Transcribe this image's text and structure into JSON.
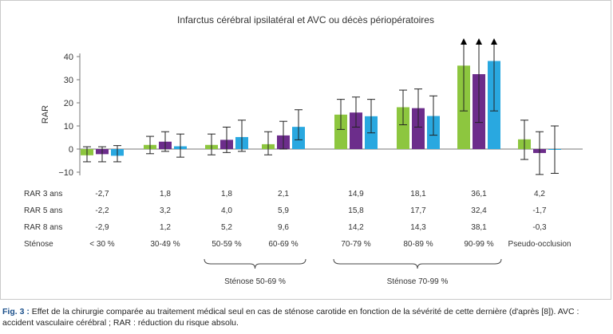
{
  "chart_data": {
    "type": "bar",
    "title": "Infarctus cérébral ipsilatéral et AVC ou décès périopératoires",
    "ylabel": "RAR",
    "ylim": [
      -10,
      40
    ],
    "yticks": [
      -10,
      0,
      10,
      20,
      30,
      40
    ],
    "grid": false,
    "categories": [
      "< 30 %",
      "30-49 %",
      "50-59 %",
      "60-69 %",
      "70-79 %",
      "80-89 %",
      "90-99 %",
      "Pseudo-occlusion"
    ],
    "category_row_label": "Sténose",
    "series": [
      {
        "name": "RAR 3 ans",
        "color": "#8dc63f",
        "values": [
          -2.7,
          1.8,
          1.8,
          2.1,
          14.9,
          18.1,
          36.1,
          4.2
        ],
        "display": [
          "-2,7",
          "1,8",
          "1,8",
          "2,1",
          "14,9",
          "18,1",
          "36,1",
          "4,2"
        ],
        "err_low": [
          -5.5,
          -2.0,
          -2.5,
          -2.5,
          8.5,
          10.5,
          16.5,
          -4.5
        ],
        "err_high": [
          1.0,
          5.5,
          6.5,
          7.5,
          21.5,
          25.5,
          null,
          12.5
        ]
      },
      {
        "name": "RAR 5 ans",
        "color": "#6c2d8b",
        "values": [
          -2.2,
          3.2,
          4.0,
          5.9,
          15.8,
          17.7,
          32.4,
          -1.7
        ],
        "display": [
          "-2,2",
          "3,2",
          "4,0",
          "5,9",
          "15,8",
          "17,7",
          "32,4",
          "-1,7"
        ],
        "err_low": [
          -5.5,
          -1.0,
          -1.5,
          0.0,
          9.5,
          9.5,
          11.5,
          -11.0
        ],
        "err_high": [
          1.0,
          7.5,
          9.5,
          12.0,
          22.5,
          26.0,
          null,
          7.5
        ]
      },
      {
        "name": "RAR 8 ans",
        "color": "#29a8e0",
        "values": [
          -2.9,
          1.2,
          5.2,
          9.6,
          14.2,
          14.3,
          38.1,
          -0.3
        ],
        "display": [
          "-2,9",
          "1,2",
          "5,2",
          "9,6",
          "14,2",
          "14,3",
          "38,1",
          "-0,3"
        ],
        "err_low": [
          -5.5,
          -3.5,
          -1.0,
          4.0,
          7.0,
          6.0,
          16.5,
          -10.5
        ],
        "err_high": [
          1.5,
          6.5,
          12.5,
          17.0,
          21.5,
          23.0,
          null,
          10.0
        ]
      }
    ],
    "arrows_above": [
      6
    ],
    "groups": [
      {
        "label": "Sténose 50-69 %",
        "from": 2,
        "to": 3
      },
      {
        "label": "Sténose 70-99 %",
        "from": 4,
        "to": 6
      }
    ]
  },
  "caption": {
    "label": "Fig. 3 :",
    "text": " Effet de la chirurgie comparée au traitement médical seul en cas de sténose carotide en fonction de la sévérité de cette dernière (d'après [8]). AVC : accident vasculaire cérébral ; RAR : réduction du risque absolu."
  }
}
